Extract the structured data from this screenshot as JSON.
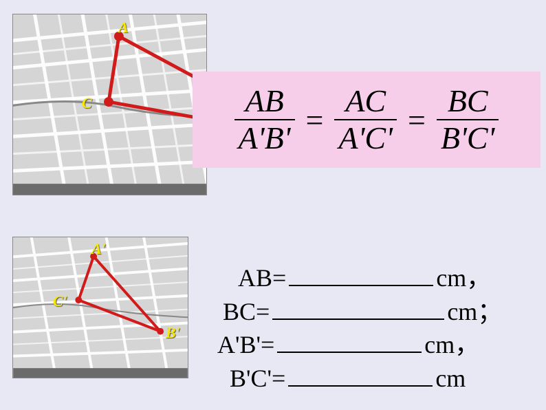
{
  "background_color": "#e8e8f4",
  "map1": {
    "labels": {
      "A": "A",
      "C": "C"
    },
    "label_color": "#f8e800",
    "label_fontsize": 22,
    "triangle": {
      "stroke": "#d11a1a",
      "stroke_width": 5,
      "A": [
        155,
        32
      ],
      "C": [
        140,
        128
      ],
      "B_offscreen": [
        430,
        180
      ]
    },
    "street_color": "#ffffff",
    "block_color": "#cfcfcf"
  },
  "map2": {
    "labels": {
      "Aprime": "A'",
      "Bprime": "B'",
      "Cprime": "C'"
    },
    "label_color": "#f8e800",
    "label_fontsize": 22,
    "triangle": {
      "stroke": "#d11a1a",
      "stroke_width": 4,
      "A": [
        118,
        28
      ],
      "C": [
        96,
        92
      ],
      "B": [
        216,
        138
      ]
    },
    "street_color": "#ffffff",
    "block_color": "#cfcfcf"
  },
  "formula": {
    "background": "#f6ceea",
    "fontsize": 46,
    "ratios": [
      {
        "num": "AB",
        "den": "A'B'"
      },
      {
        "num": "AC",
        "den": "A'C'"
      },
      {
        "num": "BC",
        "den": "B'C'"
      }
    ],
    "equals": "="
  },
  "measurements": {
    "fontsize": 36,
    "rows": [
      {
        "label": "AB=",
        "blank_width": 210,
        "unit": "cm",
        "punct": "，"
      },
      {
        "label": "BC=",
        "blank_width": 250,
        "unit": "cm",
        "punct": "；"
      },
      {
        "label": "A'B'=",
        "blank_width": 210,
        "unit": "cm",
        "punct": "，"
      },
      {
        "label": "B'C'=",
        "blank_width": 210,
        "unit": "cm",
        "punct": ""
      }
    ]
  }
}
